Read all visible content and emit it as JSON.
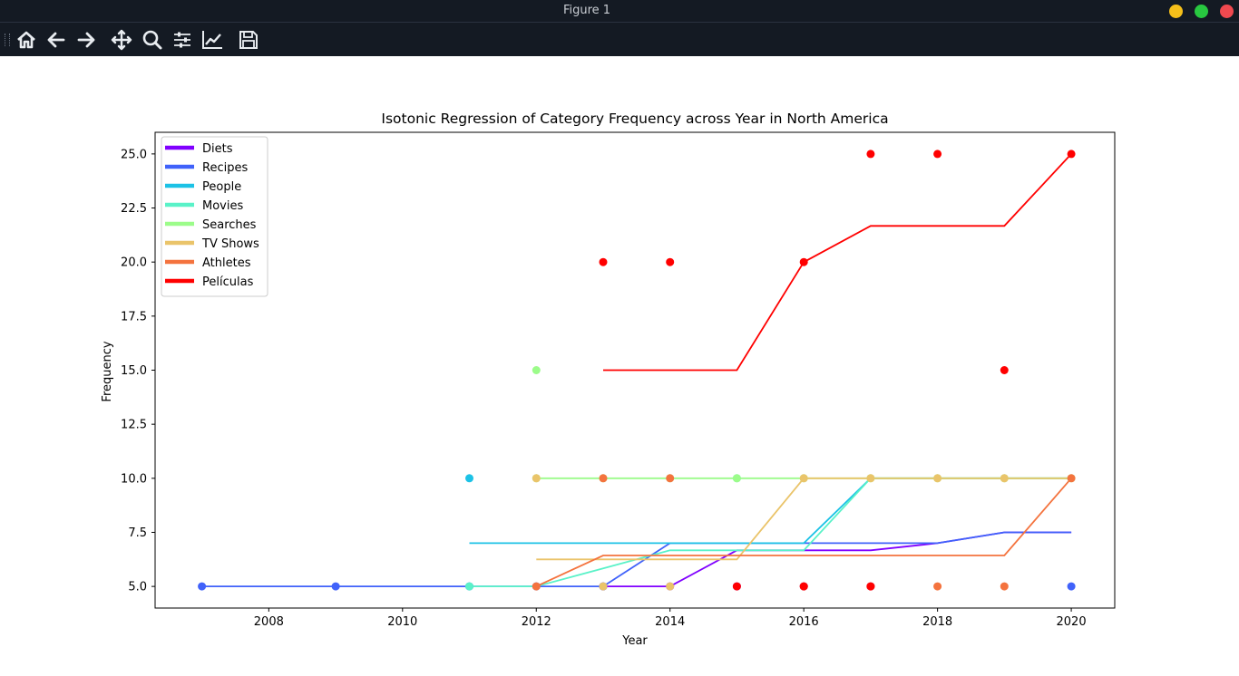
{
  "window": {
    "title": "Figure 1"
  },
  "toolbar": {
    "buttons": [
      "home-icon",
      "back-icon",
      "forward-icon",
      "pan-icon",
      "zoom-icon",
      "configure-subplots-icon",
      "edit-axis-icon",
      "save-icon"
    ]
  },
  "colors": {
    "chrome_bg": "#141a23",
    "minimize": "#f5bf1a",
    "maximize": "#28c840",
    "close": "#f0494f"
  },
  "chart_data": {
    "type": "line",
    "title": "Isotonic Regression of Category Frequency across Year in North America",
    "xlabel": "Year",
    "ylabel": "Frequency",
    "xlim": [
      2006.3,
      2020.65
    ],
    "ylim": [
      4.0,
      26.0
    ],
    "xticks": [
      2008,
      2010,
      2012,
      2014,
      2016,
      2018,
      2020
    ],
    "yticks": [
      5.0,
      7.5,
      10.0,
      12.5,
      15.0,
      17.5,
      20.0,
      22.5,
      25.0
    ],
    "ytick_labels": [
      "5.0",
      "7.5",
      "10.0",
      "12.5",
      "15.0",
      "17.5",
      "20.0",
      "22.5",
      "25.0"
    ],
    "legend_position": "top-left",
    "grid": false,
    "series": [
      {
        "name": "Diets",
        "color": "#8000ff",
        "points": [
          [
            2013,
            5
          ],
          [
            2014,
            5
          ],
          [
            2015,
            5
          ],
          [
            2016,
            5
          ],
          [
            2017,
            5
          ]
        ],
        "fit": [
          [
            2013,
            5
          ],
          [
            2014,
            5
          ],
          [
            2015,
            6.67
          ],
          [
            2016,
            6.67
          ],
          [
            2017,
            6.67
          ],
          [
            2018,
            7
          ],
          [
            2019,
            7.5
          ],
          [
            2020,
            7.5
          ]
        ]
      },
      {
        "name": "Recipes",
        "color": "#4062fa",
        "points": [
          [
            2007,
            5
          ],
          [
            2009,
            5
          ],
          [
            2011,
            5
          ],
          [
            2012,
            5
          ],
          [
            2013,
            5
          ],
          [
            2020,
            5
          ]
        ],
        "fit": [
          [
            2007,
            5
          ],
          [
            2009,
            5
          ],
          [
            2011,
            5
          ],
          [
            2012,
            5
          ],
          [
            2013,
            5
          ],
          [
            2014,
            7
          ],
          [
            2016,
            7
          ],
          [
            2017,
            7
          ],
          [
            2018,
            7
          ],
          [
            2019,
            7.5
          ],
          [
            2020,
            7.5
          ]
        ]
      },
      {
        "name": "People",
        "color": "#1cc2e6",
        "points": [
          [
            2011,
            10
          ]
        ],
        "fit": [
          [
            2011,
            7
          ],
          [
            2012,
            7
          ],
          [
            2013,
            7
          ],
          [
            2014,
            7
          ],
          [
            2015,
            7
          ],
          [
            2016,
            7
          ],
          [
            2017,
            10
          ],
          [
            2018,
            10
          ],
          [
            2019,
            10
          ],
          [
            2020,
            10
          ]
        ]
      },
      {
        "name": "Movies",
        "color": "#5af2c8",
        "points": [
          [
            2011,
            5
          ],
          [
            2015,
            10
          ]
        ],
        "fit": [
          [
            2011,
            5
          ],
          [
            2012,
            5
          ],
          [
            2013,
            5.83
          ],
          [
            2014,
            6.67
          ],
          [
            2015,
            6.67
          ],
          [
            2016,
            6.67
          ],
          [
            2017,
            10
          ],
          [
            2018,
            10
          ],
          [
            2019,
            10
          ],
          [
            2020,
            10
          ]
        ]
      },
      {
        "name": "Searches",
        "color": "#9cfc8a",
        "points": [
          [
            2012,
            15
          ],
          [
            2012,
            10
          ],
          [
            2013,
            10
          ],
          [
            2014,
            10
          ],
          [
            2015,
            10
          ],
          [
            2016,
            10
          ],
          [
            2017,
            10
          ],
          [
            2018,
            10
          ],
          [
            2019,
            10
          ],
          [
            2020,
            10
          ]
        ],
        "fit": [
          [
            2012,
            10
          ],
          [
            2013,
            10
          ],
          [
            2014,
            10
          ],
          [
            2015,
            10
          ],
          [
            2016,
            10
          ],
          [
            2017,
            10
          ],
          [
            2018,
            10
          ],
          [
            2019,
            10
          ],
          [
            2020,
            10
          ]
        ]
      },
      {
        "name": "TV Shows",
        "color": "#eac46a",
        "points": [
          [
            2012,
            10
          ],
          [
            2013,
            5
          ],
          [
            2014,
            5
          ],
          [
            2016,
            10
          ],
          [
            2017,
            10
          ],
          [
            2018,
            10
          ],
          [
            2019,
            10
          ]
        ],
        "fit": [
          [
            2012,
            6.25
          ],
          [
            2013,
            6.25
          ],
          [
            2014,
            6.25
          ],
          [
            2015,
            6.25
          ],
          [
            2016,
            10
          ],
          [
            2017,
            10
          ],
          [
            2018,
            10
          ],
          [
            2019,
            10
          ],
          [
            2020,
            10
          ]
        ]
      },
      {
        "name": "Athletes",
        "color": "#f4733e",
        "points": [
          [
            2012,
            5
          ],
          [
            2013,
            10
          ],
          [
            2014,
            10
          ],
          [
            2016,
            5
          ],
          [
            2017,
            5
          ],
          [
            2018,
            5
          ],
          [
            2019,
            5
          ],
          [
            2020,
            10
          ]
        ],
        "fit": [
          [
            2012,
            5
          ],
          [
            2013,
            6.43
          ],
          [
            2014,
            6.43
          ],
          [
            2015,
            6.43
          ],
          [
            2016,
            6.43
          ],
          [
            2017,
            6.43
          ],
          [
            2018,
            6.43
          ],
          [
            2019,
            6.43
          ],
          [
            2020,
            10
          ]
        ]
      },
      {
        "name": "Películas",
        "color": "#ff0000",
        "points": [
          [
            2013,
            20
          ],
          [
            2014,
            20
          ],
          [
            2015,
            5
          ],
          [
            2016,
            20
          ],
          [
            2017,
            25
          ],
          [
            2018,
            25
          ],
          [
            2019,
            15
          ],
          [
            2020,
            25
          ],
          [
            2016,
            5
          ],
          [
            2017,
            5
          ]
        ],
        "fit": [
          [
            2013,
            15
          ],
          [
            2014,
            15
          ],
          [
            2015,
            15
          ],
          [
            2016,
            20
          ],
          [
            2017,
            21.67
          ],
          [
            2018,
            21.67
          ],
          [
            2019,
            21.67
          ],
          [
            2020,
            25
          ]
        ]
      }
    ]
  }
}
